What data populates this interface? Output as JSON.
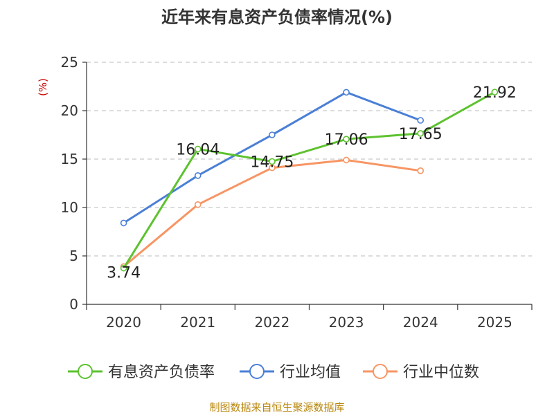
{
  "chart_data": {
    "type": "line",
    "title": "近年来有息资产负债率情况(%)",
    "ylabel": "(%)",
    "xlabel": "",
    "categories": [
      "2020",
      "2021",
      "2022",
      "2023",
      "2024",
      "2025"
    ],
    "ylim": [
      0,
      25
    ],
    "yticks": [
      "0",
      "5",
      "10",
      "15",
      "20",
      "25"
    ],
    "grid": true,
    "legend_position": "bottom",
    "series": [
      {
        "name": "有息资产负债率",
        "color": "#5dc22f",
        "values": [
          3.74,
          16.04,
          14.75,
          17.06,
          17.65,
          21.92
        ],
        "labels": [
          "3.74",
          "16.04",
          "14.75",
          "17.06",
          "17.65",
          "21.92"
        ]
      },
      {
        "name": "行业均值",
        "color": "#4a7fd6",
        "values": [
          8.4,
          13.3,
          17.5,
          21.9,
          19.0,
          null
        ]
      },
      {
        "name": "行业中位数",
        "color": "#f79563",
        "values": [
          3.9,
          10.3,
          14.1,
          14.9,
          13.8,
          null
        ]
      }
    ],
    "source": "制图数据来自恒生聚源数据库"
  }
}
